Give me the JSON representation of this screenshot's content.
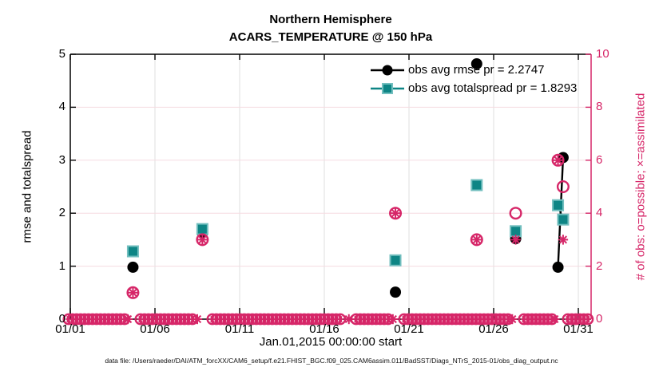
{
  "header": {
    "title_line1": "Northern Hemisphere",
    "title_line2": "ACARS_TEMPERATURE @ 150 hPa"
  },
  "footer": {
    "data_file": "data file: /Users/raeder/DAI/ATM_forcXX/CAM6_setup/f.e21.FHIST_BGC.f09_025.CAM6assim.011/BadSST/Diags_NTrS_2015-01/obs_diag_output.nc"
  },
  "colors": {
    "rmse_black": "#000000",
    "spread_teal": "#0e8585",
    "spread_teal_edge": "#73bfbf",
    "obs_pink": "#d62668",
    "grid_pink": "#f5dbe1",
    "grid_gray": "#dfdfdf"
  },
  "chart_data": {
    "type": "line",
    "title": "Northern Hemisphere",
    "subtitle": "ACARS_TEMPERATURE @ 150 hPa",
    "xlabel": "Jan.01,2015 00:00:00 start",
    "ylabel_left": "rmse and totalspread",
    "ylabel_right": "# of obs: o=possible; ×=assimilated",
    "xlim_days": [
      1,
      31.75
    ],
    "x_ticks": [
      "01/01",
      "01/06",
      "01/11",
      "01/16",
      "01/21",
      "01/26",
      "01/31"
    ],
    "x_tick_days": [
      1,
      6,
      11,
      16,
      21,
      26,
      31
    ],
    "ylim_left": [
      0,
      5
    ],
    "y_ticks_left": [
      "0",
      "1",
      "2",
      "3",
      "4",
      "5"
    ],
    "y_tick_values_left": [
      0,
      1,
      2,
      3,
      4,
      5
    ],
    "ylim_right": [
      0,
      10
    ],
    "y_ticks_right": [
      "0",
      "2",
      "4",
      "6",
      "8",
      "10"
    ],
    "y_tick_values_right": [
      0,
      2,
      4,
      6,
      8,
      10
    ],
    "grid": "on",
    "legend_position": "top-right-inside",
    "legend": [
      {
        "label": "obs avg rmse pr = 2.2747",
        "marker": "circle",
        "color": "#000000"
      },
      {
        "label": "obs avg totalspread pr = 1.8293",
        "marker": "square",
        "color": "#0e8585"
      }
    ],
    "x_days": [
      4.7,
      8.8,
      20.2,
      25.0,
      27.3,
      29.8,
      30.1
    ],
    "series": [
      {
        "name": "obs avg rmse",
        "axis": "left",
        "marker": "filled-circle",
        "color": "#000000",
        "values": [
          0.98,
          1.63,
          0.51,
          4.82,
          1.52,
          0.98,
          3.05
        ],
        "connect_segments": [
          [
            5,
            6
          ]
        ]
      },
      {
        "name": "obs avg totalspread",
        "axis": "left",
        "marker": "filled-square",
        "color": "#0e8585",
        "values": [
          1.28,
          1.7,
          1.11,
          2.53,
          1.66,
          2.15,
          1.88
        ],
        "connect_segments": [
          [
            5,
            6
          ]
        ]
      },
      {
        "name": "possible",
        "axis": "right",
        "marker": "open-circle",
        "color": "#d62668",
        "values": [
          1,
          3,
          4,
          3,
          4,
          6,
          5
        ]
      },
      {
        "name": "assimilated",
        "axis": "right",
        "marker": "asterisk",
        "color": "#d62668",
        "values": [
          1,
          3,
          4,
          3,
          3,
          6,
          3
        ]
      }
    ],
    "zero_band": {
      "description": "overlapping o and × markers at count 0 for every time bin",
      "value": 0,
      "x_range_days": [
        0.9,
        31.65
      ],
      "gap_days": [
        4.7,
        8.8,
        17.45,
        20.2,
        27.3,
        29.95
      ],
      "x_mark_days": [
        4.4,
        8.5,
        17.45,
        20.05,
        27.1,
        29.6
      ]
    }
  }
}
